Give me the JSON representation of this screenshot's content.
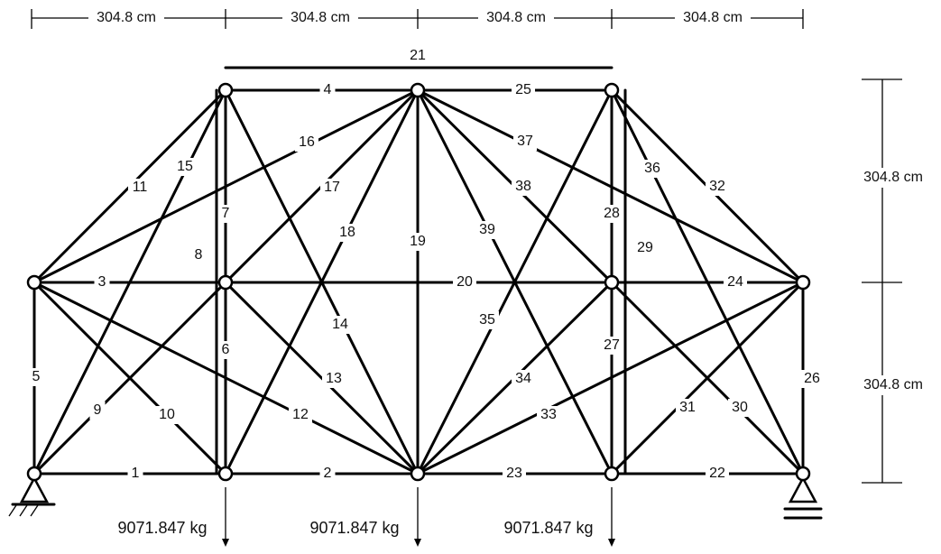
{
  "dimensions": {
    "horizontal": [
      "304.8 cm",
      "304.8 cm",
      "304.8 cm",
      "304.8 cm"
    ],
    "vertical": [
      "304.8 cm",
      "304.8 cm"
    ]
  },
  "members": [
    "1",
    "2",
    "3",
    "4",
    "5",
    "6",
    "7",
    "8",
    "9",
    "10",
    "11",
    "12",
    "13",
    "14",
    "15",
    "16",
    "17",
    "18",
    "19",
    "20",
    "21",
    "22",
    "23",
    "24",
    "25",
    "26",
    "27",
    "28",
    "29",
    "30",
    "31",
    "32",
    "33",
    "34",
    "35",
    "36",
    "37",
    "38",
    "39"
  ],
  "loads": [
    "9071.847 kg",
    "9071.847 kg",
    "9071.847 kg"
  ]
}
